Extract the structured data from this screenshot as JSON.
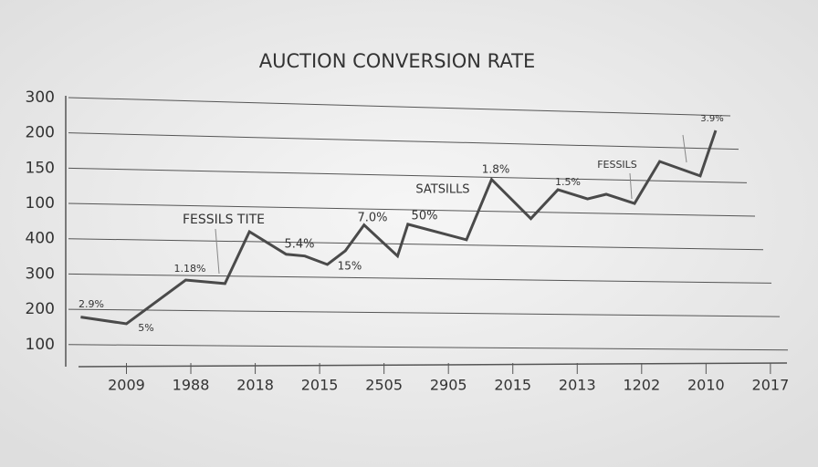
{
  "chart_data": {
    "type": "line",
    "title": "AUCTION CONVERSION RATE",
    "color": "#4a4a4a",
    "grid": true,
    "xlim": [
      -0.9,
      10.2
    ],
    "xticks": [
      {
        "value": 0,
        "label": "2009"
      },
      {
        "value": 1,
        "label": "1988"
      },
      {
        "value": 2,
        "label": "2018"
      },
      {
        "value": 3,
        "label": "2015"
      },
      {
        "value": 4,
        "label": "2505"
      },
      {
        "value": 5,
        "label": "2905"
      },
      {
        "value": 6,
        "label": "2015"
      },
      {
        "value": 7,
        "label": "2013"
      },
      {
        "value": 8,
        "label": "1202"
      },
      {
        "value": 9,
        "label": "2010"
      },
      {
        "value": 10,
        "label": "2017"
      }
    ],
    "ylim": [
      0.4,
      8
    ],
    "yticks": [
      {
        "value": 8,
        "label": "300"
      },
      {
        "value": 7,
        "label": "200"
      },
      {
        "value": 6,
        "label": "150"
      },
      {
        "value": 5,
        "label": "100"
      },
      {
        "value": 4,
        "label": "400"
      },
      {
        "value": 3,
        "label": "300"
      },
      {
        "value": 2,
        "label": "200"
      },
      {
        "value": 1,
        "label": "100"
      }
    ],
    "x": [
      -0.71,
      0,
      0.92,
      1.53,
      1.91,
      2.48,
      2.77,
      3.12,
      3.4,
      3.69,
      4.21,
      4.37,
      5.28,
      5.67,
      6.28,
      6.7,
      7.16,
      7.45,
      7.89,
      8.28,
      8.91,
      9.15
    ],
    "values": [
      1.78,
      1.59,
      2.83,
      2.73,
      4.2,
      3.56,
      3.51,
      3.27,
      3.66,
      4.39,
      3.51,
      4.41,
      3.97,
      5.68,
      4.57,
      5.39,
      5.13,
      5.26,
      5.0,
      6.19,
      5.78,
      7.07
    ],
    "annotations": [
      "FESSILS TITE",
      "SATSILLS",
      "FESSILS",
      "1.18%",
      "5.4%",
      "15%",
      "7.0%",
      "50%",
      "1.8%",
      "1.5%",
      "3.9%",
      "5%",
      "2.9%"
    ]
  }
}
